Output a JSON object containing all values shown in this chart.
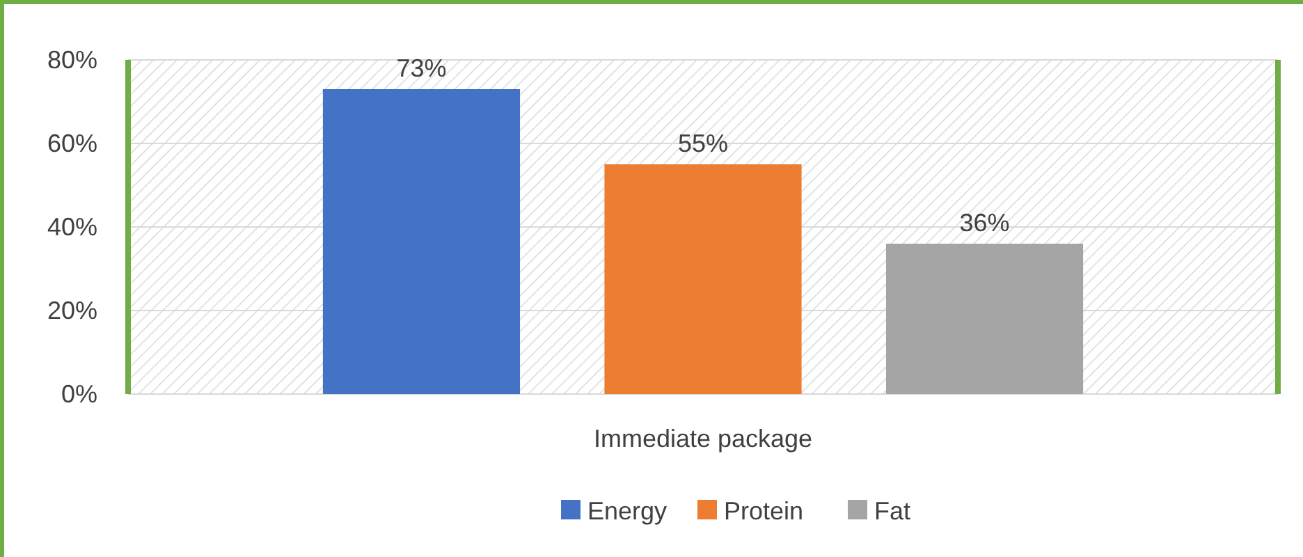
{
  "chart_data": {
    "type": "bar",
    "categories": [
      "Immediate package"
    ],
    "series": [
      {
        "name": "Energy",
        "color": "#4472c4",
        "values": [
          73
        ],
        "value_labels": [
          "73%"
        ]
      },
      {
        "name": "Protein",
        "color": "#ed7d31",
        "values": [
          55
        ],
        "value_labels": [
          "55%"
        ]
      },
      {
        "name": "Fat",
        "color": "#a5a5a5",
        "values": [
          36
        ],
        "value_labels": [
          "36%"
        ]
      }
    ],
    "ylim": [
      0,
      80
    ],
    "yticks": [
      {
        "value": 0,
        "label": "0%"
      },
      {
        "value": 20,
        "label": "20%"
      },
      {
        "value": 40,
        "label": "40%"
      },
      {
        "value": 60,
        "label": "60%"
      },
      {
        "value": 80,
        "label": "80%"
      }
    ],
    "grid": "y",
    "legend": "bottom"
  }
}
